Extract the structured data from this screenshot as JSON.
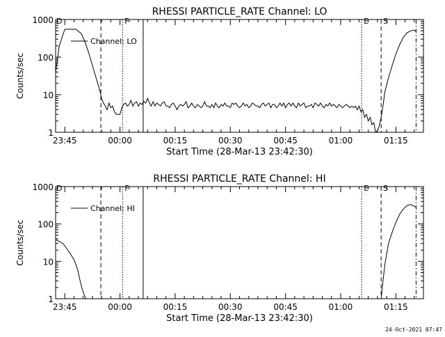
{
  "footer": {
    "timestamp": "24-Oct-2021 07:47"
  },
  "chart_data": [
    {
      "type": "line",
      "title": "RHESSI PARTICLE_RATE Channel: LO",
      "xlabel": "Start Time (28-Mar-13 23:42:30)",
      "ylabel": "Counts/sec",
      "yscale": "log",
      "ylim": [
        1,
        1000
      ],
      "xlim_minutes": [
        -2.5,
        97.5
      ],
      "x_ticks": [
        {
          "min": 0,
          "label": "23:45"
        },
        {
          "min": 15,
          "label": "00:00"
        },
        {
          "min": 30,
          "label": "00:15"
        },
        {
          "min": 45,
          "label": "00:30"
        },
        {
          "min": 60,
          "label": "00:45"
        },
        {
          "min": 75,
          "label": "01:00"
        },
        {
          "min": 90,
          "label": "01:15"
        }
      ],
      "y_ticks": [
        {
          "v": 1,
          "label": "1"
        },
        {
          "v": 10,
          "label": "10"
        },
        {
          "v": 100,
          "label": "100"
        },
        {
          "v": 1000,
          "label": "1000"
        }
      ],
      "markers": [
        {
          "min": 9.8,
          "style": "dashed",
          "label": ""
        },
        {
          "min": 15.7,
          "style": "dotted",
          "label": "F"
        },
        {
          "min": 21.3,
          "style": "solid",
          "label": ""
        },
        {
          "min": 80.7,
          "style": "dotted",
          "label": "E"
        },
        {
          "min": 86.0,
          "style": "dashed",
          "label": "S"
        },
        {
          "min": 95.5,
          "style": "dashdot",
          "label": ""
        }
      ],
      "corner_label": "D",
      "legend": "Channel: LO",
      "legend_position": "upper-left",
      "series": [
        {
          "name": "Channel: LO",
          "x": [
            -2.5,
            -1.5,
            0,
            1.5,
            3,
            4.5,
            5.5,
            6.5,
            7.5,
            8.5,
            9.5,
            10,
            10.5,
            11,
            11.5,
            12,
            12.5,
            13,
            13.5,
            14,
            14.5,
            15,
            15.5,
            16,
            16.5,
            17,
            17.5,
            18,
            18.5,
            19,
            19.5,
            20,
            20.5,
            21,
            21.5,
            22,
            22.5,
            23,
            23.5,
            24,
            24.5,
            25,
            25.5,
            26,
            26.5,
            27,
            27.5,
            28,
            28.5,
            29,
            29.5,
            30,
            30.5,
            31,
            31.5,
            32,
            32.5,
            33,
            33.5,
            34,
            34.5,
            35,
            35.5,
            36,
            36.5,
            37,
            37.5,
            38,
            38.5,
            39,
            39.5,
            40,
            40.5,
            41,
            41.5,
            42,
            42.5,
            43,
            43.5,
            44,
            44.5,
            45,
            45.5,
            46,
            46.5,
            47,
            47.5,
            48,
            48.5,
            49,
            49.5,
            50,
            50.5,
            51,
            51.5,
            52,
            52.5,
            53,
            53.5,
            54,
            54.5,
            55,
            55.5,
            56,
            56.5,
            57,
            57.5,
            58,
            58.5,
            59,
            59.5,
            60,
            60.5,
            61,
            61.5,
            62,
            62.5,
            63,
            63.5,
            64,
            64.5,
            65,
            65.5,
            66,
            66.5,
            67,
            67.5,
            68,
            68.5,
            69,
            69.5,
            70,
            70.5,
            71,
            71.5,
            72,
            72.5,
            73,
            73.5,
            74,
            74.5,
            75,
            75.5,
            76,
            76.5,
            77,
            77.5,
            78,
            78.5,
            79,
            79.5,
            80,
            80.5,
            81,
            81.5,
            82,
            82.5,
            83,
            83.5,
            84,
            84.5,
            85,
            85.5,
            86,
            86.5,
            87,
            88,
            89,
            90,
            91,
            92,
            93,
            94,
            95,
            95.5
          ],
          "y": [
            40,
            200,
            550,
            550,
            550,
            420,
            250,
            130,
            60,
            28,
            13,
            8,
            6,
            5,
            4,
            6,
            4.5,
            5,
            3.5,
            3,
            3,
            3,
            4.5,
            5.5,
            6,
            5,
            5.5,
            7,
            5,
            6,
            6.5,
            5,
            6,
            5.5,
            6.5,
            6,
            8,
            6,
            5,
            6.5,
            5,
            6,
            5.5,
            5,
            6,
            6.5,
            5,
            5,
            4.5,
            5.5,
            6,
            5,
            4,
            5,
            5.5,
            5,
            5.5,
            6.5,
            4.5,
            5,
            6,
            5,
            4.5,
            5.5,
            5,
            4.5,
            5,
            6.5,
            5,
            5,
            4.5,
            5.5,
            4.5,
            6,
            5,
            4.5,
            5.5,
            5,
            6,
            5,
            5,
            4.5,
            6,
            5.5,
            6,
            5,
            4.5,
            5,
            6,
            5,
            5.5,
            4.5,
            5,
            6,
            5.5,
            5,
            5,
            4.5,
            5.5,
            6,
            5,
            5.5,
            6,
            4.5,
            5.5,
            5.5,
            4.5,
            5,
            6,
            5,
            6,
            4.5,
            5.5,
            6,
            5,
            6,
            5,
            4.5,
            6,
            5,
            5.5,
            6,
            4.5,
            5,
            5,
            5.5,
            4.5,
            6,
            5.5,
            5,
            6,
            5,
            4.5,
            5.5,
            5,
            6,
            5,
            5.5,
            5,
            4.5,
            5.5,
            5,
            4.5,
            5,
            5.5,
            5,
            4.5,
            5,
            4.5,
            5,
            4,
            5,
            3.5,
            4,
            2.5,
            3,
            2,
            2.5,
            1.6,
            1.8,
            1,
            1.1,
            1.5,
            2.5,
            5,
            12,
            28,
            60,
            120,
            210,
            330,
            440,
            500,
            520,
            480
          ]
        }
      ]
    },
    {
      "type": "line",
      "title": "RHESSI PARTICLE_RATE Channel: HI",
      "xlabel": "Start Time (28-Mar-13 23:42:30)",
      "ylabel": "Counts/sec",
      "yscale": "log",
      "ylim": [
        1,
        1000
      ],
      "xlim_minutes": [
        -2.5,
        97.5
      ],
      "x_ticks": [
        {
          "min": 0,
          "label": "23:45"
        },
        {
          "min": 15,
          "label": "00:00"
        },
        {
          "min": 30,
          "label": "00:15"
        },
        {
          "min": 45,
          "label": "00:30"
        },
        {
          "min": 60,
          "label": "00:45"
        },
        {
          "min": 75,
          "label": "01:00"
        },
        {
          "min": 90,
          "label": "01:15"
        }
      ],
      "y_ticks": [
        {
          "v": 1,
          "label": "1"
        },
        {
          "v": 10,
          "label": "10"
        },
        {
          "v": 100,
          "label": "100"
        },
        {
          "v": 1000,
          "label": "1000"
        }
      ],
      "markers": [
        {
          "min": 9.8,
          "style": "dashed",
          "label": ""
        },
        {
          "min": 15.7,
          "style": "dotted",
          "label": "F"
        },
        {
          "min": 21.3,
          "style": "solid",
          "label": ""
        },
        {
          "min": 80.7,
          "style": "dotted",
          "label": "E"
        },
        {
          "min": 86.0,
          "style": "dashed",
          "label": "S"
        },
        {
          "min": 95.5,
          "style": "dashdot",
          "label": ""
        }
      ],
      "corner_label": "D",
      "legend": "Channel: HI",
      "legend_position": "upper-left",
      "series": [
        {
          "name": "Channel: HI",
          "x": [
            -2.5,
            -1.5,
            -0.5,
            0.5,
            1.5,
            2.5,
            3.5,
            4,
            4.5,
            5,
            5.5,
            5.8,
            86,
            86.5,
            87,
            87.5,
            88,
            89,
            90,
            91,
            92,
            93,
            94,
            95,
            95.5
          ],
          "y": [
            38,
            34,
            30,
            22,
            16,
            11,
            6,
            3.5,
            2.2,
            1.5,
            1.1,
            1,
            1,
            3,
            8,
            16,
            30,
            60,
            110,
            180,
            250,
            310,
            330,
            300,
            280
          ]
        }
      ]
    }
  ]
}
